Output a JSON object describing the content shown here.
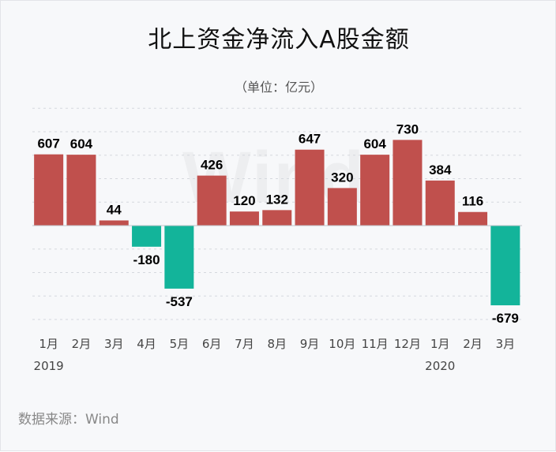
{
  "page": {
    "source": "数据来源：Wind",
    "watermark": "Wind"
  },
  "chart_data": {
    "type": "bar",
    "title": "北上资金净流入A股金额",
    "subtitle": "（单位：亿元）",
    "categories": [
      "1月",
      "2月",
      "3月",
      "4月",
      "5月",
      "6月",
      "7月",
      "8月",
      "9月",
      "10月",
      "11月",
      "12月",
      "1月",
      "2月",
      "3月"
    ],
    "values": [
      607,
      604,
      44,
      -180,
      -537,
      426,
      120,
      132,
      647,
      320,
      604,
      730,
      384,
      116,
      -679
    ],
    "year_labels": [
      {
        "text": "2019",
        "category_index": 0
      },
      {
        "text": "2020",
        "category_index": 12
      }
    ],
    "ylim": [
      -800,
      1000
    ],
    "grid": true,
    "legend": "none",
    "colors": {
      "positive": "#c0504d",
      "negative": "#13b49a",
      "grid": "#d5d8de",
      "zero": "#bfc3ca"
    }
  }
}
